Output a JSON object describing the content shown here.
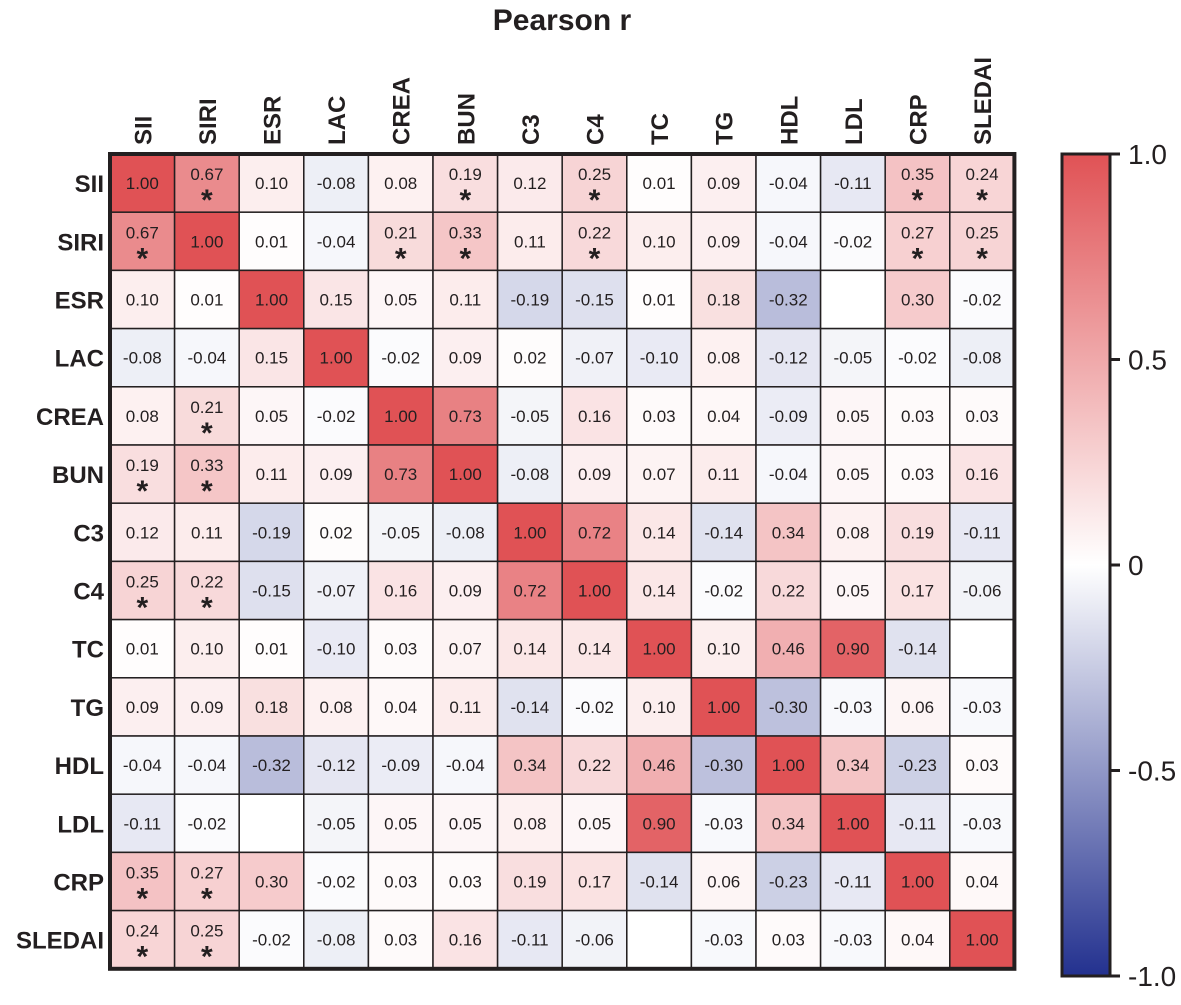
{
  "chart_data": {
    "type": "heatmap",
    "title": "Pearson r",
    "labels": [
      "SII",
      "SIRI",
      "ESR",
      "LAC",
      "CREA",
      "BUN",
      "C3",
      "C4",
      "TC",
      "TG",
      "HDL",
      "LDL",
      "CRP",
      "SLEDAI"
    ],
    "values": [
      [
        1.0,
        0.67,
        0.1,
        -0.08,
        0.08,
        0.19,
        0.12,
        0.25,
        0.01,
        0.09,
        -0.04,
        -0.11,
        0.35,
        0.24
      ],
      [
        0.67,
        1.0,
        0.01,
        -0.04,
        0.21,
        0.33,
        0.11,
        0.22,
        0.1,
        0.09,
        -0.04,
        -0.02,
        0.27,
        0.25
      ],
      [
        0.1,
        0.01,
        1.0,
        0.15,
        0.05,
        0.11,
        -0.19,
        -0.15,
        0.01,
        0.18,
        -0.32,
        null,
        0.3,
        -0.02
      ],
      [
        -0.08,
        -0.04,
        0.15,
        1.0,
        -0.02,
        0.09,
        0.02,
        -0.07,
        -0.1,
        0.08,
        -0.12,
        -0.05,
        -0.02,
        -0.08
      ],
      [
        0.08,
        0.21,
        0.05,
        -0.02,
        1.0,
        0.73,
        -0.05,
        0.16,
        0.03,
        0.04,
        -0.09,
        0.05,
        0.03,
        0.03
      ],
      [
        0.19,
        0.33,
        0.11,
        0.09,
        0.73,
        1.0,
        -0.08,
        0.09,
        0.07,
        0.11,
        -0.04,
        0.05,
        0.03,
        0.16
      ],
      [
        0.12,
        0.11,
        -0.19,
        0.02,
        -0.05,
        -0.08,
        1.0,
        0.72,
        0.14,
        -0.14,
        0.34,
        0.08,
        0.19,
        -0.11
      ],
      [
        0.25,
        0.22,
        -0.15,
        -0.07,
        0.16,
        0.09,
        0.72,
        1.0,
        0.14,
        -0.02,
        0.22,
        0.05,
        0.17,
        -0.06
      ],
      [
        0.01,
        0.1,
        0.01,
        -0.1,
        0.03,
        0.07,
        0.14,
        0.14,
        1.0,
        0.1,
        0.46,
        0.9,
        -0.14,
        null
      ],
      [
        0.09,
        0.09,
        0.18,
        0.08,
        0.04,
        0.11,
        -0.14,
        -0.02,
        0.1,
        1.0,
        -0.3,
        -0.03,
        0.06,
        -0.03
      ],
      [
        -0.04,
        -0.04,
        -0.32,
        -0.12,
        -0.09,
        -0.04,
        0.34,
        0.22,
        0.46,
        -0.3,
        1.0,
        0.34,
        -0.23,
        0.03
      ],
      [
        -0.11,
        -0.02,
        null,
        -0.05,
        0.05,
        0.05,
        0.08,
        0.05,
        0.9,
        -0.03,
        0.34,
        1.0,
        -0.11,
        -0.03
      ],
      [
        0.35,
        0.27,
        0.3,
        -0.02,
        0.03,
        0.03,
        0.19,
        0.17,
        -0.14,
        0.06,
        -0.23,
        -0.11,
        1.0,
        0.04
      ],
      [
        0.24,
        0.25,
        -0.02,
        -0.08,
        0.03,
        0.16,
        -0.11,
        -0.06,
        null,
        -0.03,
        0.03,
        -0.03,
        0.04,
        1.0
      ]
    ],
    "significant": [
      [
        0,
        1
      ],
      [
        0,
        5
      ],
      [
        0,
        7
      ],
      [
        0,
        12
      ],
      [
        0,
        13
      ],
      [
        1,
        0
      ],
      [
        1,
        4
      ],
      [
        1,
        5
      ],
      [
        1,
        7
      ],
      [
        1,
        12
      ],
      [
        1,
        13
      ],
      [
        4,
        1
      ],
      [
        5,
        0
      ],
      [
        5,
        1
      ],
      [
        7,
        0
      ],
      [
        7,
        1
      ],
      [
        12,
        0
      ],
      [
        12,
        1
      ],
      [
        13,
        0
      ],
      [
        13,
        1
      ]
    ],
    "significance_marker": "*",
    "colorbar": {
      "range": [
        -1.0,
        1.0
      ],
      "ticks": [
        1.0,
        0.5,
        0,
        -0.5,
        -1.0
      ],
      "tick_labels": [
        "1.0",
        "0.5",
        "0",
        "-0.5",
        "-1.0"
      ]
    },
    "colors": {
      "low": "#23318f",
      "mid": "#ffffff",
      "high": "#e05255",
      "border": "#231f20"
    }
  }
}
